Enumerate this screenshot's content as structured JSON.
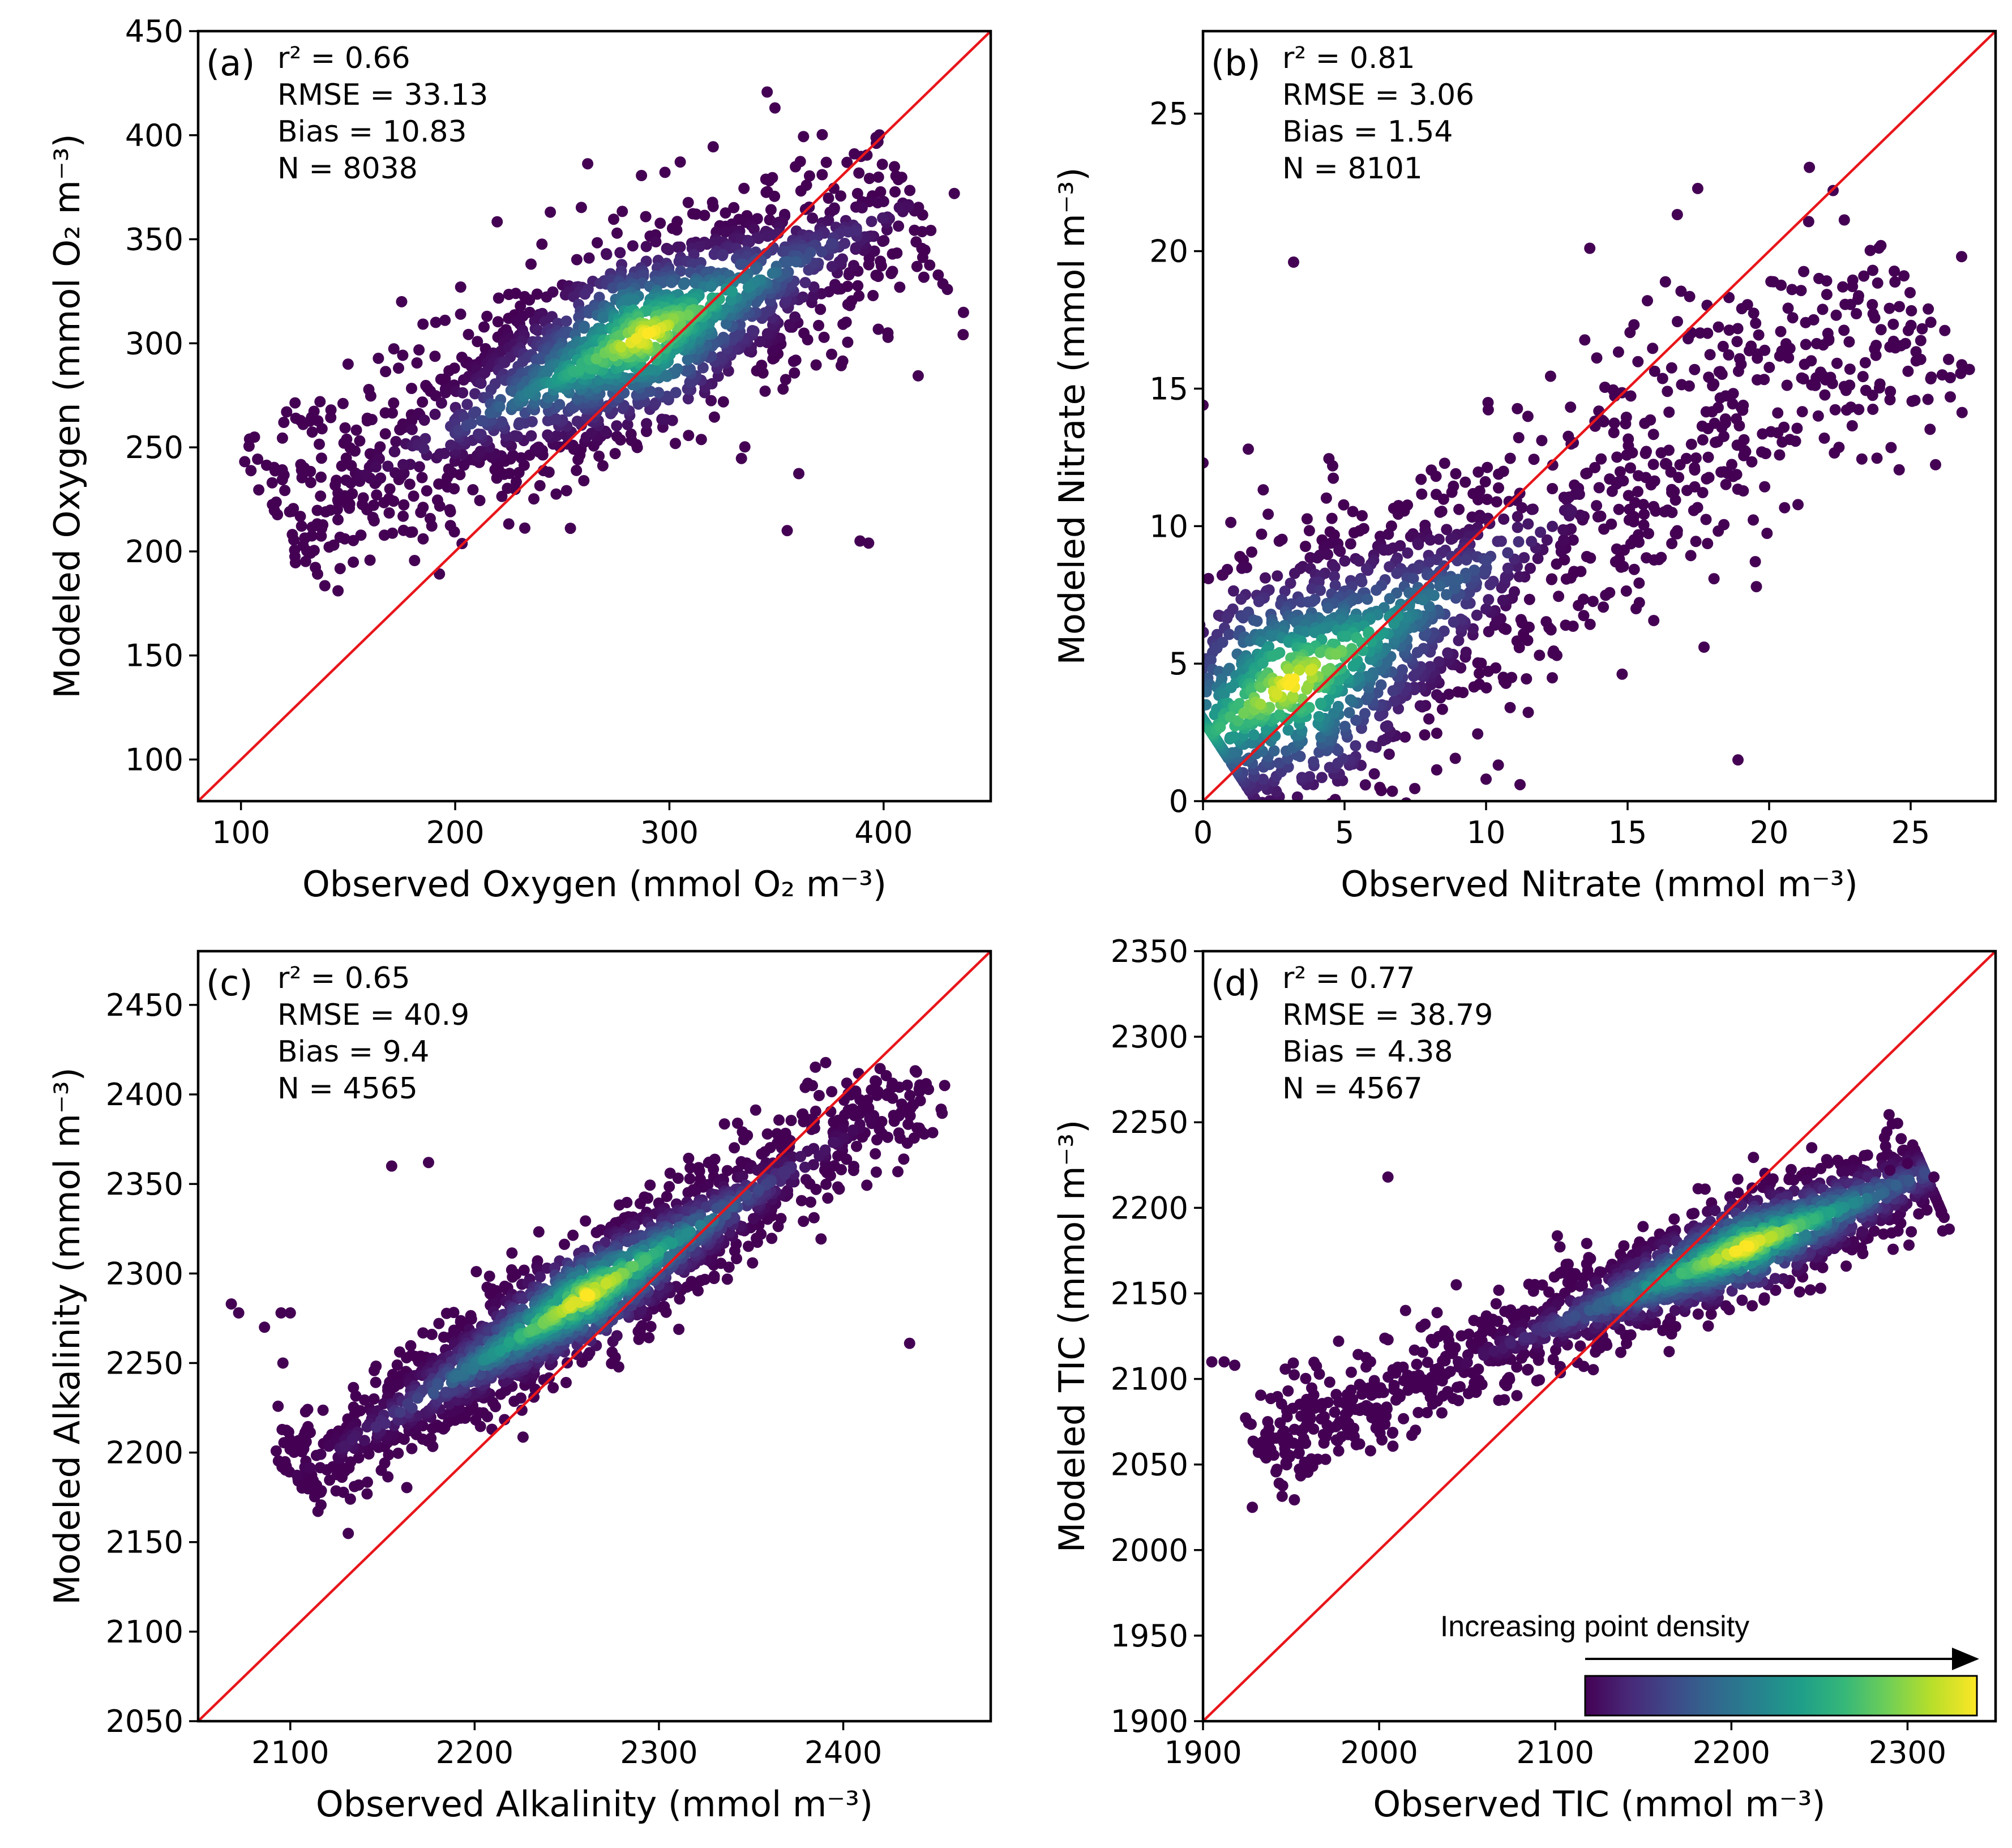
{
  "colors": {
    "identity_line": "#e8161b",
    "axes": "#000000",
    "viridis": [
      "#440154",
      "#482878",
      "#3e4989",
      "#31688e",
      "#26828e",
      "#1f9e89",
      "#35b779",
      "#6ece58",
      "#b5de2b",
      "#fde725"
    ]
  },
  "colorbar": {
    "label": "Increasing point density"
  },
  "chart_data": [
    {
      "type": "scatter",
      "panel": "(a)",
      "xlabel": "Observed Oxygen (mmol O₂ m⁻³)",
      "ylabel": "Modeled Oxygen (mmol O₂ m⁻³)",
      "xlim": [
        80,
        450
      ],
      "ylim": [
        80,
        450
      ],
      "xticks": [
        "100",
        "200",
        "300",
        "400"
      ],
      "yticks": [
        "100",
        "150",
        "200",
        "250",
        "300",
        "350",
        "400",
        "450"
      ],
      "stats": [
        "r² = 0.66",
        "RMSE = 33.13",
        "Bias = 10.83",
        "N = 8038"
      ],
      "identity_line": true,
      "cloud": {
        "start": [
          115,
          215
        ],
        "end": [
          415,
          368
        ],
        "center": [
          290,
          300
        ],
        "spread": 22
      },
      "outliers": [
        [
          104,
          254
        ],
        [
          120,
          262
        ],
        [
          355,
          210
        ],
        [
          389,
          205
        ],
        [
          393,
          204
        ],
        [
          175,
          320
        ],
        [
          433,
          372
        ],
        [
          150,
          290
        ],
        [
          402,
          305
        ]
      ]
    },
    {
      "type": "scatter",
      "panel": "(b)",
      "xlabel": "Observed Nitrate (mmol m⁻³)",
      "ylabel": "Modeled Nitrate (mmol m⁻³)",
      "xlim": [
        0,
        28
      ],
      "ylim": [
        0,
        28
      ],
      "xticks": [
        "0",
        "5",
        "10",
        "15",
        "20",
        "25"
      ],
      "yticks": [
        "0",
        "5",
        "10",
        "15",
        "20",
        "25"
      ],
      "stats": [
        "r² = 0.81",
        "RMSE = 3.06",
        "Bias = 1.54",
        "N = 8101"
      ],
      "identity_line": true,
      "cloud": {
        "start": [
          0.3,
          2.5
        ],
        "end": [
          25.5,
          18.5
        ],
        "center": [
          3,
          4.5
        ],
        "spread": 2.2
      },
      "outliers": [
        [
          3.2,
          19.6
        ],
        [
          1.6,
          12.8
        ],
        [
          11.2,
          0.6
        ],
        [
          10.0,
          0.8
        ],
        [
          18.9,
          1.5
        ],
        [
          17.7,
          5.6
        ],
        [
          15.3,
          7.0
        ],
        [
          12.5,
          5.3
        ],
        [
          26.8,
          19.8
        ],
        [
          26.4,
          15.4
        ],
        [
          26.4,
          14.7
        ],
        [
          0.0,
          14.4
        ],
        [
          0.0,
          12.3
        ]
      ]
    },
    {
      "type": "scatter",
      "panel": "(c)",
      "xlabel": "Observed Alkalinity (mmol m⁻³)",
      "ylabel": "Modeled Alkalinity (mmol m⁻³)",
      "xlim": [
        2050,
        2480
      ],
      "ylim": [
        2050,
        2480
      ],
      "xticks": [
        "2100",
        "2200",
        "2300",
        "2400"
      ],
      "yticks": [
        "2050",
        "2100",
        "2150",
        "2200",
        "2250",
        "2300",
        "2350",
        "2400",
        "2450"
      ],
      "stats": [
        "r² = 0.65",
        "RMSE = 40.9",
        "Bias = 9.4",
        "N = 4565"
      ],
      "identity_line": true,
      "cloud": {
        "start": [
          2100,
          2185
        ],
        "end": [
          2445,
          2405
        ],
        "center": [
          2268,
          2275
        ],
        "spread": 14
      },
      "outliers": [
        [
          2068,
          2283
        ],
        [
          2072,
          2278
        ],
        [
          2095,
          2278
        ],
        [
          2100,
          2278
        ],
        [
          2086,
          2270
        ],
        [
          2096,
          2250
        ],
        [
          2155,
          2360
        ],
        [
          2175,
          2362
        ],
        [
          2436,
          2261
        ],
        [
          2455,
          2405
        ],
        [
          2445,
          2406
        ]
      ]
    },
    {
      "type": "scatter",
      "panel": "(d)",
      "xlabel": "Observed TIC (mmol m⁻³)",
      "ylabel": "Modeled TIC (mmol m⁻³)",
      "xlim": [
        1900,
        2350
      ],
      "ylim": [
        1900,
        2350
      ],
      "xticks": [
        "1900",
        "2000",
        "2100",
        "2200",
        "2300"
      ],
      "yticks": [
        "1900",
        "1950",
        "2000",
        "2050",
        "2100",
        "2150",
        "2200",
        "2250",
        "2300",
        "2350"
      ],
      "stats": [
        "r² = 0.77",
        "RMSE = 38.79",
        "Bias = 4.38",
        "N = 4567"
      ],
      "identity_line": true,
      "cloud": {
        "start": [
          1930,
          2060
        ],
        "end": [
          2310,
          2220
        ],
        "center": [
          2200,
          2195
        ],
        "spread": 14
      },
      "outliers": [
        [
          1905,
          2110
        ],
        [
          1912,
          2110
        ],
        [
          1918,
          2108
        ],
        [
          1928,
          2025
        ],
        [
          2005,
          2218
        ],
        [
          2015,
          2140
        ],
        [
          2315,
          2218
        ],
        [
          2300,
          2226
        ],
        [
          2290,
          2222
        ]
      ]
    }
  ]
}
